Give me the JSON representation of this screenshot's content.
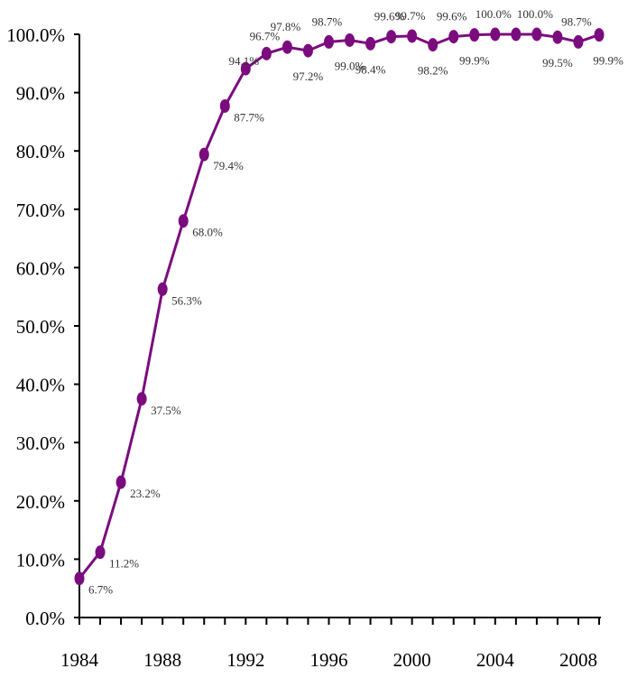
{
  "chart_data": {
    "type": "line",
    "title": "",
    "xlabel": "",
    "ylabel": "",
    "series_color": "#7B0C7E",
    "x": [
      1984,
      1985,
      1986,
      1987,
      1988,
      1989,
      1990,
      1991,
      1992,
      1993,
      1994,
      1995,
      1996,
      1997,
      1998,
      1999,
      2000,
      2001,
      2002,
      2003,
      2004,
      2005,
      2006,
      2007,
      2008,
      2009
    ],
    "values": [
      6.7,
      11.2,
      23.2,
      37.5,
      56.3,
      68.0,
      79.4,
      87.7,
      94.1,
      96.7,
      97.8,
      97.2,
      98.7,
      99.0,
      98.4,
      99.6,
      99.7,
      98.2,
      99.6,
      99.9,
      100.0,
      100.0,
      100.0,
      99.5,
      98.7,
      99.9
    ],
    "data_labels": [
      "6.7%",
      "11.2%",
      "23.2%",
      "37.5%",
      "56.3%",
      "68.0%",
      "79.4%",
      "87.7%",
      "94.1%",
      "96.7%",
      "97.8%",
      "97.2%",
      "98.7%",
      "99.0%",
      "98.4%",
      "99.6%",
      "99.7%",
      "98.2%",
      "99.6%",
      "99.9%",
      "100.0%",
      "",
      "100.0%",
      "99.5%",
      "98.7%",
      "99.9%"
    ],
    "y_ticks": [
      "0.0%",
      "10.0%",
      "20.0%",
      "30.0%",
      "40.0%",
      "50.0%",
      "60.0%",
      "70.0%",
      "80.0%",
      "90.0%",
      "100.0%"
    ],
    "x_ticks": [
      "1984",
      "1988",
      "1992",
      "1996",
      "2000",
      "2004",
      "2008"
    ],
    "ylim": [
      0,
      100
    ],
    "xlim": [
      1984,
      2009
    ],
    "grid": false,
    "legend": "none"
  }
}
